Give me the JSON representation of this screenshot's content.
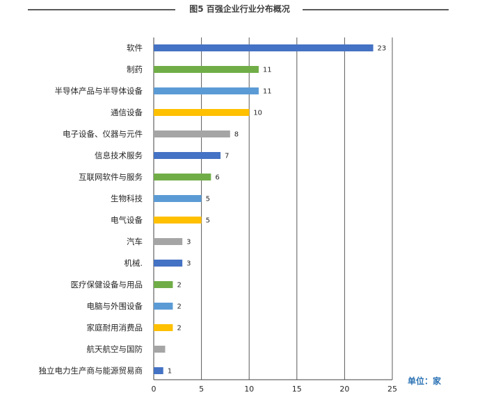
{
  "title": "图5 百强企业行业分布概况",
  "unit_label": "单位：家",
  "colors": {
    "dark_blue": "#4472c4",
    "green": "#70ad47",
    "light_blue": "#5b9bd5",
    "gold": "#ffc000",
    "gray": "#a5a5a5",
    "title_line": "#595959",
    "unit_text": "#2e74b5"
  },
  "chart_data": {
    "type": "bar",
    "orientation": "horizontal",
    "title": "图5 百强企业行业分布概况",
    "xlabel": "",
    "ylabel": "",
    "xlim": [
      0,
      25
    ],
    "x_ticks": [
      0,
      5,
      10,
      15,
      20,
      25
    ],
    "grid": true,
    "categories": [
      "软件",
      "制药",
      "半导体产品与半导体设备",
      "通信设备",
      "电子设备、仪器与元件",
      "信息技术服务",
      "互联网软件与服务",
      "生物科技",
      "电气设备",
      "汽车",
      "机械.",
      "医疗保健设备与用品",
      "电脑与外围设备",
      "家庭耐用消费品",
      "航天航空与国防",
      "独立电力生产商与能源贸易商"
    ],
    "values": [
      23,
      11,
      11,
      10,
      8,
      7,
      6,
      5,
      5,
      3,
      3,
      2,
      2,
      2,
      1.2,
      1
    ],
    "value_labels": [
      "23",
      "11",
      "11",
      "10",
      "8",
      "7",
      "6",
      "5",
      "5",
      "3",
      "3",
      "2",
      "2",
      "2",
      "",
      "1"
    ],
    "bar_colors": [
      "#4472c4",
      "#70ad47",
      "#5b9bd5",
      "#ffc000",
      "#a5a5a5",
      "#4472c4",
      "#70ad47",
      "#5b9bd5",
      "#ffc000",
      "#a5a5a5",
      "#4472c4",
      "#70ad47",
      "#5b9bd5",
      "#ffc000",
      "#a5a5a5",
      "#4472c4"
    ]
  }
}
